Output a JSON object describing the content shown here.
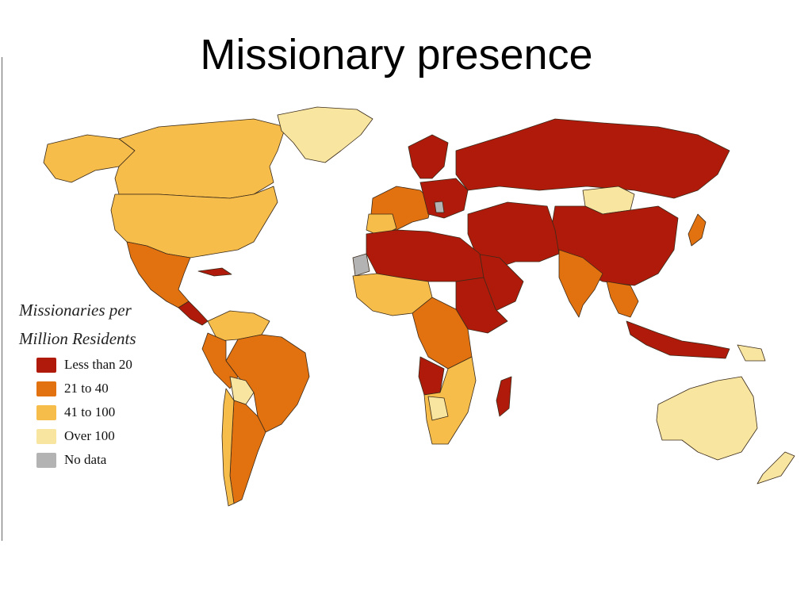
{
  "title": "Missionary presence",
  "legend": {
    "title_line1": "Missionaries per",
    "title_line2": "Million Residents",
    "items": [
      {
        "label": "Less than 20",
        "color": "#b01a0a"
      },
      {
        "label": "21 to 40",
        "color": "#e2710f"
      },
      {
        "label": "41 to 100",
        "color": "#f6bd4a"
      },
      {
        "label": "Over 100",
        "color": "#f7e5a0"
      },
      {
        "label": "No data",
        "color": "#b3b3b3"
      }
    ]
  },
  "regions": [
    {
      "name": "Canada",
      "category": "41 to 100"
    },
    {
      "name": "United States",
      "category": "41 to 100"
    },
    {
      "name": "Greenland",
      "category": "Over 100"
    },
    {
      "name": "Mexico",
      "category": "21 to 40"
    },
    {
      "name": "Brazil",
      "category": "21 to 40"
    },
    {
      "name": "Argentina",
      "category": "21 to 40"
    },
    {
      "name": "Russia",
      "category": "Less than 20"
    },
    {
      "name": "China",
      "category": "Less than 20"
    },
    {
      "name": "Mongolia",
      "category": "Over 100"
    },
    {
      "name": "India",
      "category": "21 to 40"
    },
    {
      "name": "Australia",
      "category": "Over 100"
    },
    {
      "name": "Western Sahara",
      "category": "No data"
    }
  ]
}
